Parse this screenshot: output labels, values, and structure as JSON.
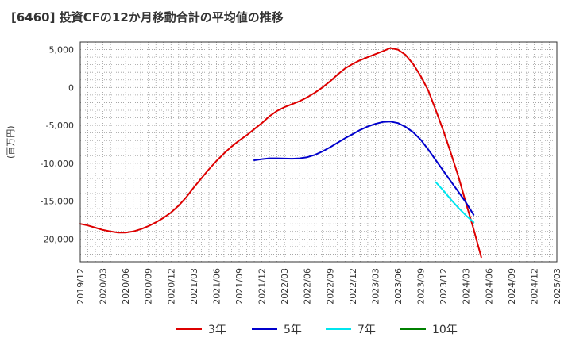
{
  "chart_data": {
    "type": "line",
    "title": "[6460]  投資CFの12か月移動合計の平均値の推移",
    "ylabel": "(百万円)",
    "xlabel": "",
    "x_ticks": [
      "2019/12",
      "2020/03",
      "2020/06",
      "2020/09",
      "2020/12",
      "2021/03",
      "2021/06",
      "2021/09",
      "2021/12",
      "2022/03",
      "2022/06",
      "2022/09",
      "2022/12",
      "2023/03",
      "2023/06",
      "2023/09",
      "2023/12",
      "2024/03",
      "2024/06",
      "2024/09",
      "2024/12",
      "2025/03"
    ],
    "y_ticks": [
      5000,
      0,
      -5000,
      -10000,
      -15000,
      -20000
    ],
    "y_tick_labels": [
      "5,000",
      "0",
      "-5,000",
      "-10,000",
      "-15,000",
      "-20,000"
    ],
    "xlim": [
      "2019/12",
      "2025/03"
    ],
    "ylim": [
      -23000,
      6000
    ],
    "grid": true,
    "legend_position": "bottom",
    "series": [
      {
        "name": "3年",
        "color": "#dd0000",
        "points": [
          [
            "2019/12",
            -18000
          ],
          [
            "2020/01",
            -18200
          ],
          [
            "2020/02",
            -18500
          ],
          [
            "2020/03",
            -18800
          ],
          [
            "2020/04",
            -19000
          ],
          [
            "2020/05",
            -19150
          ],
          [
            "2020/06",
            -19150
          ],
          [
            "2020/07",
            -19000
          ],
          [
            "2020/08",
            -18700
          ],
          [
            "2020/09",
            -18300
          ],
          [
            "2020/10",
            -17800
          ],
          [
            "2020/11",
            -17200
          ],
          [
            "2020/12",
            -16500
          ],
          [
            "2021/01",
            -15600
          ],
          [
            "2021/02",
            -14500
          ],
          [
            "2021/03",
            -13200
          ],
          [
            "2021/04",
            -12000
          ],
          [
            "2021/05",
            -10800
          ],
          [
            "2021/06",
            -9700
          ],
          [
            "2021/07",
            -8700
          ],
          [
            "2021/08",
            -7800
          ],
          [
            "2021/09",
            -7000
          ],
          [
            "2021/10",
            -6300
          ],
          [
            "2021/11",
            -5500
          ],
          [
            "2021/12",
            -4700
          ],
          [
            "2022/01",
            -3800
          ],
          [
            "2022/02",
            -3100
          ],
          [
            "2022/03",
            -2600
          ],
          [
            "2022/04",
            -2200
          ],
          [
            "2022/05",
            -1800
          ],
          [
            "2022/06",
            -1300
          ],
          [
            "2022/07",
            -700
          ],
          [
            "2022/08",
            0
          ],
          [
            "2022/09",
            800
          ],
          [
            "2022/10",
            1700
          ],
          [
            "2022/11",
            2500
          ],
          [
            "2022/12",
            3100
          ],
          [
            "2023/01",
            3600
          ],
          [
            "2023/02",
            4000
          ],
          [
            "2023/03",
            4400
          ],
          [
            "2023/04",
            4800
          ],
          [
            "2023/05",
            5200
          ],
          [
            "2023/06",
            5000
          ],
          [
            "2023/07",
            4300
          ],
          [
            "2023/08",
            3100
          ],
          [
            "2023/09",
            1500
          ],
          [
            "2023/10",
            -400
          ],
          [
            "2023/11",
            -3000
          ],
          [
            "2023/12",
            -5700
          ],
          [
            "2024/01",
            -8700
          ],
          [
            "2024/02",
            -11800
          ],
          [
            "2024/03",
            -15300
          ],
          [
            "2024/04",
            -18700
          ],
          [
            "2024/05",
            -22400
          ]
        ]
      },
      {
        "name": "5年",
        "color": "#0000cc",
        "points": [
          [
            "2021/11",
            -9600
          ],
          [
            "2021/12",
            -9450
          ],
          [
            "2022/01",
            -9350
          ],
          [
            "2022/02",
            -9350
          ],
          [
            "2022/03",
            -9380
          ],
          [
            "2022/04",
            -9400
          ],
          [
            "2022/05",
            -9350
          ],
          [
            "2022/06",
            -9200
          ],
          [
            "2022/07",
            -8900
          ],
          [
            "2022/08",
            -8450
          ],
          [
            "2022/09",
            -7900
          ],
          [
            "2022/10",
            -7300
          ],
          [
            "2022/11",
            -6700
          ],
          [
            "2022/12",
            -6150
          ],
          [
            "2023/01",
            -5600
          ],
          [
            "2023/02",
            -5150
          ],
          [
            "2023/03",
            -4800
          ],
          [
            "2023/04",
            -4550
          ],
          [
            "2023/05",
            -4500
          ],
          [
            "2023/06",
            -4700
          ],
          [
            "2023/07",
            -5200
          ],
          [
            "2023/08",
            -5900
          ],
          [
            "2023/09",
            -6900
          ],
          [
            "2023/10",
            -8200
          ],
          [
            "2023/11",
            -9600
          ],
          [
            "2023/12",
            -11000
          ],
          [
            "2024/01",
            -12400
          ],
          [
            "2024/02",
            -13800
          ],
          [
            "2024/03",
            -15200
          ],
          [
            "2024/04",
            -16800
          ]
        ]
      },
      {
        "name": "7年",
        "color": "#00e5ee",
        "points": [
          [
            "2023/11",
            -12500
          ],
          [
            "2023/12",
            -13600
          ],
          [
            "2024/01",
            -14800
          ],
          [
            "2024/02",
            -15900
          ],
          [
            "2024/03",
            -16900
          ],
          [
            "2024/04",
            -17800
          ]
        ]
      },
      {
        "name": "10年",
        "color": "#008000",
        "points": []
      }
    ]
  }
}
